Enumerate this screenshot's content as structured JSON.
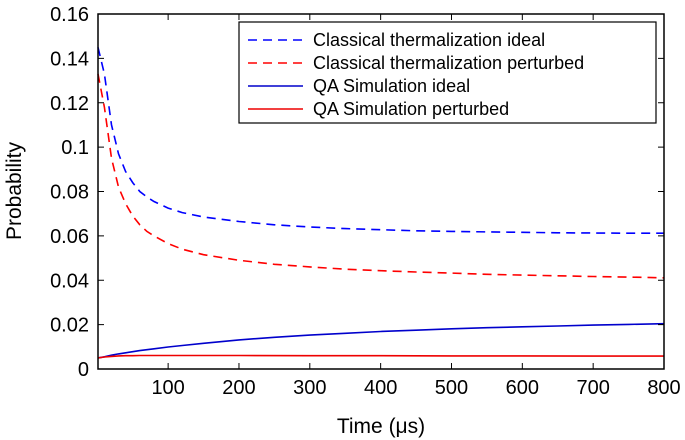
{
  "chart_data": {
    "type": "line",
    "xlabel": "Time (μs)",
    "ylabel": "Probability",
    "xlim": [
      1,
      800
    ],
    "ylim": [
      0,
      0.16
    ],
    "xticks": [
      100,
      200,
      300,
      400,
      500,
      600,
      700,
      800
    ],
    "yticks": [
      0,
      0.02,
      0.04,
      0.06,
      0.08,
      0.1,
      0.12,
      0.14,
      0.16
    ],
    "xtick_labels": [
      "100",
      "200",
      "300",
      "400",
      "500",
      "600",
      "700",
      "800"
    ],
    "ytick_labels": [
      "0",
      "0.02",
      "0.04",
      "0.06",
      "0.08",
      "0.1",
      "0.12",
      "0.14",
      "0.16"
    ],
    "grid": false,
    "legend_position": "top-right",
    "series": [
      {
        "name": "Classical thermalization ideal",
        "color": "#0000ff",
        "style": "dashed",
        "x": [
          1,
          10,
          20,
          30,
          40,
          50,
          60,
          70,
          80,
          100,
          120,
          150,
          200,
          250,
          300,
          350,
          400,
          450,
          500,
          550,
          600,
          650,
          700,
          750,
          800
        ],
        "y": [
          0.145,
          0.133,
          0.11,
          0.097,
          0.089,
          0.084,
          0.08,
          0.0775,
          0.0755,
          0.0725,
          0.0705,
          0.0685,
          0.0665,
          0.065,
          0.064,
          0.0633,
          0.0628,
          0.0623,
          0.062,
          0.0618,
          0.0616,
          0.0614,
          0.0613,
          0.0612,
          0.0612
        ]
      },
      {
        "name": "Classical thermalization perturbed",
        "color": "#ff0000",
        "style": "dashed",
        "x": [
          1,
          10,
          20,
          30,
          40,
          50,
          60,
          70,
          80,
          100,
          120,
          150,
          200,
          250,
          300,
          350,
          400,
          450,
          500,
          550,
          600,
          650,
          700,
          750,
          800
        ],
        "y": [
          0.133,
          0.118,
          0.095,
          0.082,
          0.0745,
          0.069,
          0.065,
          0.062,
          0.06,
          0.0565,
          0.054,
          0.0515,
          0.049,
          0.0472,
          0.046,
          0.045,
          0.0443,
          0.0437,
          0.0432,
          0.0427,
          0.0423,
          0.042,
          0.0417,
          0.0414,
          0.0411
        ]
      },
      {
        "name": "QA Simulation ideal",
        "color": "#0000cc",
        "style": "solid",
        "x": [
          1,
          10,
          20,
          30,
          40,
          50,
          60,
          70,
          80,
          100,
          120,
          150,
          200,
          250,
          300,
          350,
          400,
          450,
          500,
          550,
          600,
          650,
          700,
          750,
          800
        ],
        "y": [
          0.005,
          0.0055,
          0.0062,
          0.0068,
          0.0073,
          0.0078,
          0.0083,
          0.0087,
          0.0091,
          0.0099,
          0.0106,
          0.0116,
          0.0131,
          0.0143,
          0.0153,
          0.0161,
          0.0169,
          0.0175,
          0.0181,
          0.0186,
          0.019,
          0.0194,
          0.0198,
          0.0201,
          0.0204
        ]
      },
      {
        "name": "QA Simulation perturbed",
        "color": "#ee0000",
        "style": "solid",
        "x": [
          1,
          10,
          20,
          30,
          40,
          50,
          60,
          80,
          100,
          150,
          200,
          300,
          400,
          500,
          600,
          700,
          800
        ],
        "y": [
          0.005,
          0.0054,
          0.0057,
          0.0059,
          0.006,
          0.006,
          0.0061,
          0.0061,
          0.0061,
          0.0061,
          0.0061,
          0.006,
          0.006,
          0.0059,
          0.0059,
          0.0058,
          0.0058
        ]
      }
    ]
  }
}
